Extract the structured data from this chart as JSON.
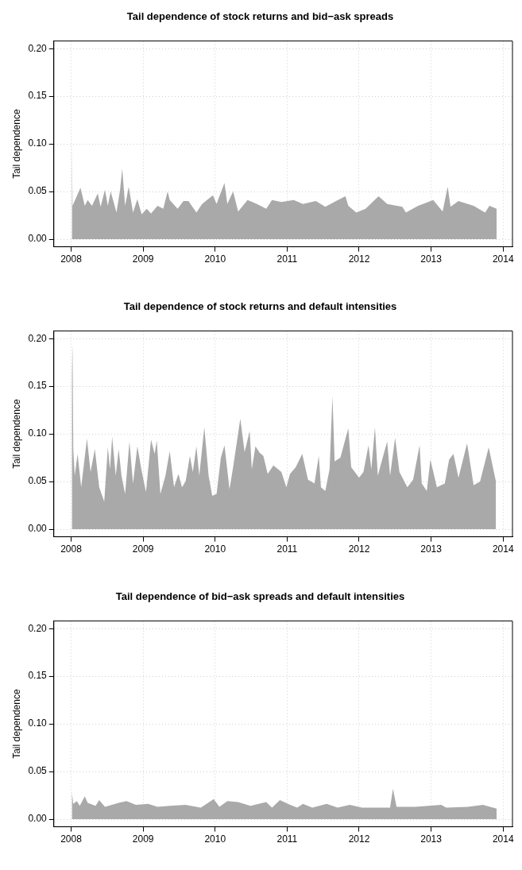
{
  "chart_data": [
    {
      "type": "area",
      "title": "Tail dependence of stock returns and bid−ask spreads",
      "ylabel": "Tail dependence",
      "grid": true,
      "xlim": [
        2007.76,
        2014.13
      ],
      "ylim": [
        -0.008,
        0.208
      ],
      "xticks": [
        2008,
        2009,
        2010,
        2011,
        2012,
        2013,
        2014
      ],
      "yticks": [
        {
          "value": 0,
          "label": "0.00"
        },
        {
          "value": 0.05,
          "label": "0.05"
        },
        {
          "value": 0.1,
          "label": "0.10"
        },
        {
          "value": 0.15,
          "label": "0.15"
        },
        {
          "value": 0.2,
          "label": "0.20"
        }
      ],
      "series": [
        {
          "color": "#a9a9a9",
          "x": [
            2008.01,
            2008.02,
            2008.13,
            2008.19,
            2008.23,
            2008.29,
            2008.37,
            2008.41,
            2008.47,
            2008.51,
            2008.55,
            2008.63,
            2008.68,
            2008.71,
            2008.75,
            2008.8,
            2008.86,
            2008.92,
            2008.98,
            2009.05,
            2009.11,
            2009.2,
            2009.28,
            2009.34,
            2009.37,
            2009.48,
            2009.56,
            2009.63,
            2009.74,
            2009.82,
            2009.97,
            2010.02,
            2010.13,
            2010.17,
            2010.25,
            2010.32,
            2010.45,
            2010.58,
            2010.71,
            2010.79,
            2010.92,
            2011.09,
            2011.22,
            2011.4,
            2011.53,
            2011.68,
            2011.81,
            2011.85,
            2011.96,
            2012.09,
            2012.27,
            2012.39,
            2012.6,
            2012.65,
            2012.82,
            2013.03,
            2013.16,
            2013.23,
            2013.27,
            2013.38,
            2013.59,
            2013.75,
            2013.81,
            2013.91
          ],
          "values": [
            0.108,
            0.035,
            0.054,
            0.035,
            0.041,
            0.035,
            0.048,
            0.034,
            0.052,
            0.035,
            0.05,
            0.028,
            0.052,
            0.074,
            0.035,
            0.055,
            0.028,
            0.042,
            0.026,
            0.032,
            0.027,
            0.035,
            0.032,
            0.05,
            0.041,
            0.032,
            0.04,
            0.04,
            0.028,
            0.037,
            0.046,
            0.037,
            0.059,
            0.037,
            0.05,
            0.029,
            0.041,
            0.037,
            0.032,
            0.041,
            0.039,
            0.041,
            0.037,
            0.04,
            0.034,
            0.04,
            0.045,
            0.035,
            0.028,
            0.032,
            0.045,
            0.037,
            0.034,
            0.028,
            0.035,
            0.041,
            0.029,
            0.055,
            0.034,
            0.04,
            0.035,
            0.028,
            0.035,
            0.032
          ]
        }
      ]
    },
    {
      "type": "area",
      "title": "Tail dependence of stock returns and default intensities",
      "ylabel": "Tail dependence",
      "grid": true,
      "xlim": [
        2007.76,
        2014.13
      ],
      "ylim": [
        -0.008,
        0.208
      ],
      "xticks": [
        2008,
        2009,
        2010,
        2011,
        2012,
        2013,
        2014
      ],
      "yticks": [
        {
          "value": 0,
          "label": "0.00"
        },
        {
          "value": 0.05,
          "label": "0.05"
        },
        {
          "value": 0.1,
          "label": "0.10"
        },
        {
          "value": 0.15,
          "label": "0.15"
        },
        {
          "value": 0.2,
          "label": "0.20"
        }
      ],
      "series": [
        {
          "color": "#a9a9a9",
          "x": [
            2008.01,
            2008.02,
            2008.03,
            2008.05,
            2008.09,
            2008.14,
            2008.22,
            2008.27,
            2008.33,
            2008.39,
            2008.46,
            2008.51,
            2008.54,
            2008.57,
            2008.62,
            2008.66,
            2008.7,
            2008.75,
            2008.81,
            2008.86,
            2008.92,
            2008.98,
            2009.04,
            2009.11,
            2009.16,
            2009.19,
            2009.24,
            2009.31,
            2009.37,
            2009.43,
            2009.49,
            2009.54,
            2009.59,
            2009.65,
            2009.69,
            2009.74,
            2009.78,
            2009.85,
            2009.91,
            2009.96,
            2010.02,
            2010.08,
            2010.13,
            2010.2,
            2010.25,
            2010.35,
            2010.41,
            2010.48,
            2010.51,
            2010.56,
            2010.62,
            2010.67,
            2010.73,
            2010.81,
            2010.92,
            2010.99,
            2011.04,
            2011.12,
            2011.21,
            2011.29,
            2011.38,
            2011.44,
            2011.47,
            2011.53,
            2011.59,
            2011.63,
            2011.66,
            2011.74,
            2011.85,
            2011.89,
            2012.0,
            2012.06,
            2012.13,
            2012.17,
            2012.22,
            2012.26,
            2012.32,
            2012.39,
            2012.43,
            2012.5,
            2012.56,
            2012.67,
            2012.75,
            2012.84,
            2012.87,
            2012.94,
            2012.99,
            2013.08,
            2013.19,
            2013.25,
            2013.31,
            2013.38,
            2013.5,
            2013.59,
            2013.68,
            2013.8,
            2013.9
          ],
          "values": [
            0.163,
            0.194,
            0.084,
            0.056,
            0.079,
            0.044,
            0.095,
            0.06,
            0.084,
            0.044,
            0.029,
            0.086,
            0.063,
            0.097,
            0.056,
            0.084,
            0.056,
            0.037,
            0.092,
            0.048,
            0.087,
            0.061,
            0.039,
            0.094,
            0.079,
            0.093,
            0.037,
            0.056,
            0.082,
            0.044,
            0.058,
            0.044,
            0.05,
            0.077,
            0.06,
            0.087,
            0.056,
            0.107,
            0.056,
            0.035,
            0.037,
            0.075,
            0.088,
            0.042,
            0.065,
            0.116,
            0.081,
            0.103,
            0.063,
            0.087,
            0.08,
            0.077,
            0.058,
            0.067,
            0.06,
            0.044,
            0.058,
            0.065,
            0.079,
            0.052,
            0.048,
            0.077,
            0.044,
            0.04,
            0.063,
            0.14,
            0.071,
            0.075,
            0.106,
            0.065,
            0.054,
            0.06,
            0.088,
            0.063,
            0.107,
            0.056,
            0.073,
            0.092,
            0.056,
            0.096,
            0.06,
            0.044,
            0.052,
            0.088,
            0.048,
            0.04,
            0.073,
            0.044,
            0.048,
            0.073,
            0.079,
            0.054,
            0.09,
            0.046,
            0.05,
            0.086,
            0.05
          ]
        }
      ]
    },
    {
      "type": "area",
      "title": "Tail dependence of bid−ask spreads and default intensities",
      "ylabel": "Tail dependence",
      "grid": true,
      "xlim": [
        2007.76,
        2014.13
      ],
      "ylim": [
        -0.008,
        0.208
      ],
      "xticks": [
        2008,
        2009,
        2010,
        2011,
        2012,
        2013,
        2014
      ],
      "yticks": [
        {
          "value": 0,
          "label": "0.00"
        },
        {
          "value": 0.05,
          "label": "0.05"
        },
        {
          "value": 0.1,
          "label": "0.10"
        },
        {
          "value": 0.15,
          "label": "0.15"
        },
        {
          "value": 0.2,
          "label": "0.20"
        }
      ],
      "series": [
        {
          "color": "#a9a9a9",
          "x": [
            2008.01,
            2008.03,
            2008.08,
            2008.12,
            2008.19,
            2008.23,
            2008.34,
            2008.39,
            2008.47,
            2008.66,
            2008.77,
            2008.9,
            2009.07,
            2009.2,
            2009.37,
            2009.59,
            2009.8,
            2009.98,
            2010.06,
            2010.17,
            2010.32,
            2010.49,
            2010.71,
            2010.79,
            2010.9,
            2011.01,
            2011.14,
            2011.22,
            2011.35,
            2011.55,
            2011.7,
            2011.87,
            2012.04,
            2012.22,
            2012.43,
            2012.47,
            2012.52,
            2012.78,
            2013.14,
            2013.21,
            2013.51,
            2013.72,
            2013.91
          ],
          "values": [
            0.029,
            0.016,
            0.019,
            0.014,
            0.024,
            0.017,
            0.014,
            0.02,
            0.013,
            0.017,
            0.019,
            0.015,
            0.016,
            0.013,
            0.014,
            0.015,
            0.012,
            0.021,
            0.013,
            0.019,
            0.018,
            0.014,
            0.018,
            0.012,
            0.02,
            0.016,
            0.012,
            0.016,
            0.012,
            0.016,
            0.012,
            0.015,
            0.012,
            0.012,
            0.012,
            0.032,
            0.013,
            0.013,
            0.015,
            0.012,
            0.013,
            0.015,
            0.011
          ]
        }
      ]
    }
  ]
}
